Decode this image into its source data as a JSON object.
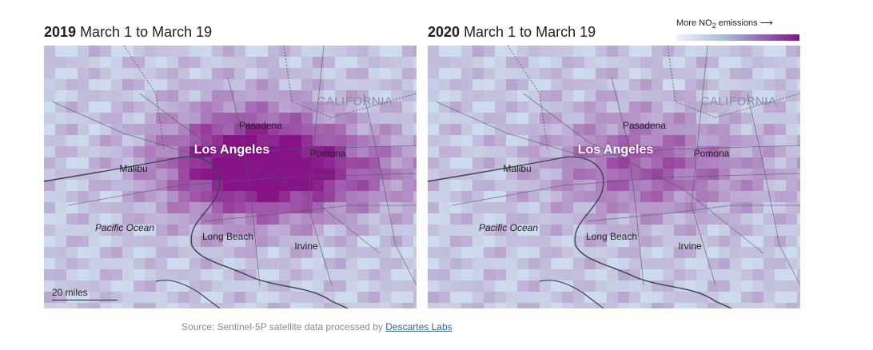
{
  "maps": [
    {
      "year": "2019",
      "range": "March 1 to March 19",
      "intensity": 1.0
    },
    {
      "year": "2020",
      "range": "March 1 to March 19",
      "intensity": 0.45
    }
  ],
  "labels": {
    "california": "CALIFORNIA",
    "pasadena": "Pasadena",
    "los_angeles": "Los Angeles",
    "pomona": "Pomona",
    "malibu": "Malibu",
    "pacific_ocean": "Pacific Ocean",
    "long_beach": "Long Beach",
    "irvine": "Irvine"
  },
  "legend": {
    "label_pre": "More NO",
    "label_sub": "2",
    "label_post": " emissions ⟶"
  },
  "scale": {
    "label": "20 miles"
  },
  "source": {
    "text": "Source: Sentinel-5P satellite data processed by ",
    "link": "Descartes Labs"
  }
}
